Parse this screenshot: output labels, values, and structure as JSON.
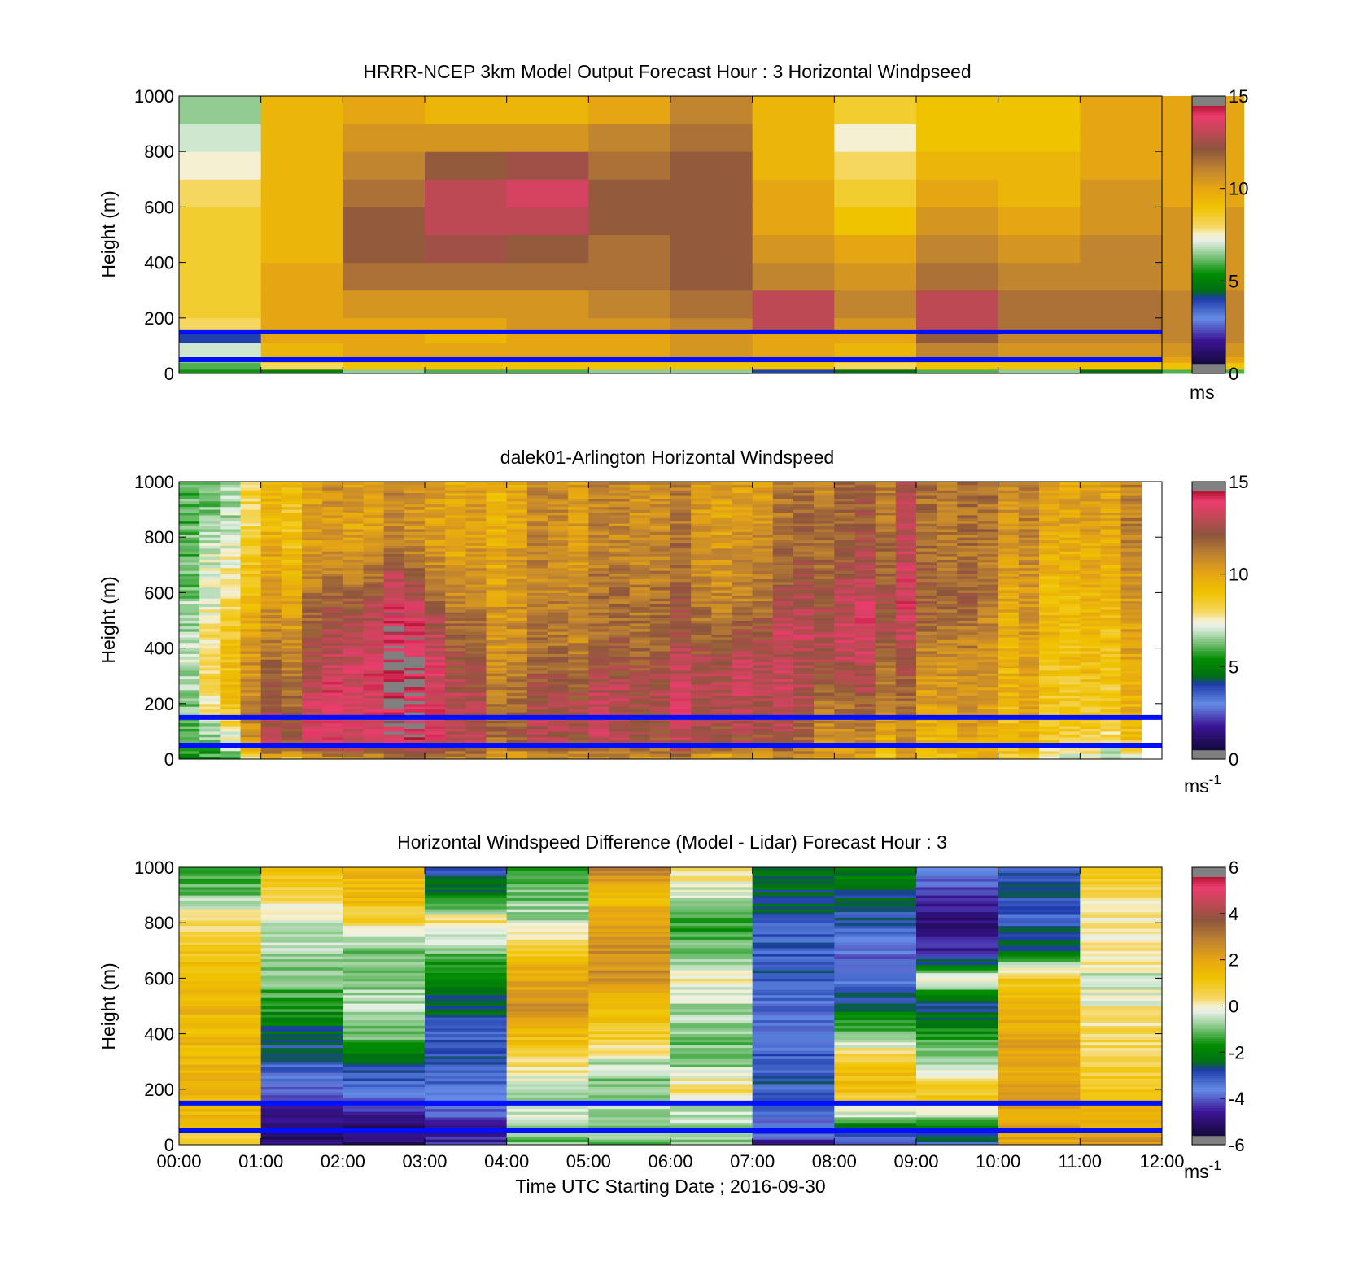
{
  "chart_data": [
    {
      "type": "heatmap",
      "id": "model",
      "title": "HRRR-NCEP 3km Model Output   Forecast Hour : 3 Horizontal Windpseed",
      "xlabel": "",
      "ylabel": "Height (m)",
      "xlim": [
        0,
        12
      ],
      "ylim": [
        0,
        1000
      ],
      "yticks": [
        "0",
        "200",
        "400",
        "600",
        "800",
        "1000"
      ],
      "xticks": [
        "",
        "",
        "",
        "",
        "",
        "",
        "",
        "",
        "",
        "",
        "",
        "",
        ""
      ],
      "columns_per_hour": 1,
      "colorbar": {
        "min": 0,
        "max": 15,
        "ticks": [
          "0",
          "5",
          "10",
          "15"
        ],
        "unit_label": "ms",
        "unit_superscript": ""
      },
      "grid": false,
      "reference_lines_height_m": [
        150,
        50
      ],
      "cell_levels_height_m": [
        0,
        15,
        40,
        60,
        110,
        160,
        200,
        300,
        400,
        500,
        600,
        700,
        800,
        900,
        1000
      ],
      "values": [
        [
          5.5,
          6.0,
          6.5,
          7.0,
          4.0,
          8.0,
          8.5,
          8.5,
          8.5,
          8.5,
          8.0,
          7.5,
          7.0,
          6.5
        ],
        [
          5.0,
          8.0,
          9.0,
          9.5,
          10.0,
          10.0,
          10.0,
          10.0,
          9.5,
          9.5,
          9.5,
          9.5,
          9.5,
          9.5
        ],
        [
          6.5,
          9.0,
          9.5,
          10.0,
          10.0,
          10.0,
          10.5,
          11.5,
          12.0,
          12.0,
          11.5,
          11.0,
          10.5,
          10.0
        ],
        [
          6.0,
          9.0,
          9.5,
          10.0,
          9.5,
          10.0,
          10.5,
          11.5,
          12.5,
          13.0,
          13.0,
          12.0,
          10.5,
          9.5
        ],
        [
          6.0,
          9.0,
          9.5,
          10.0,
          10.0,
          10.5,
          10.5,
          11.5,
          12.0,
          13.0,
          13.5,
          12.5,
          10.5,
          9.5
        ],
        [
          6.5,
          9.0,
          9.5,
          10.0,
          10.0,
          10.5,
          11.0,
          11.5,
          11.5,
          12.0,
          12.0,
          11.5,
          11.0,
          10.0
        ],
        [
          6.5,
          9.0,
          9.5,
          10.5,
          10.5,
          11.0,
          11.5,
          12.0,
          12.0,
          12.0,
          12.0,
          12.0,
          11.5,
          11.0
        ],
        [
          4.0,
          9.0,
          9.5,
          10.0,
          10.0,
          13.0,
          13.0,
          11.0,
          10.5,
          10.0,
          10.0,
          9.5,
          9.5,
          9.5
        ],
        [
          4.5,
          8.0,
          9.0,
          9.5,
          10.0,
          10.5,
          11.0,
          10.5,
          10.0,
          9.0,
          8.5,
          8.0,
          7.5,
          8.5
        ],
        [
          6.0,
          9.0,
          10.0,
          11.0,
          12.0,
          13.0,
          13.0,
          11.5,
          11.0,
          10.5,
          10.0,
          9.5,
          9.0,
          9.0
        ],
        [
          6.5,
          9.0,
          10.0,
          10.5,
          11.0,
          11.5,
          11.5,
          11.0,
          10.5,
          10.0,
          9.5,
          9.5,
          9.0,
          9.0
        ],
        [
          4.5,
          9.0,
          10.0,
          10.5,
          11.0,
          11.5,
          11.5,
          11.0,
          11.0,
          10.5,
          10.5,
          10.0,
          10.0,
          10.0
        ],
        [
          6.0,
          9.0,
          10.0,
          10.5,
          11.0,
          11.0,
          11.0,
          10.5,
          10.5,
          10.5,
          10.0,
          10.0,
          10.0,
          10.0
        ]
      ]
    },
    {
      "type": "heatmap",
      "id": "lidar",
      "title": "dalek01-Arlington  Horizontal Windspeed",
      "xlabel": "",
      "ylabel": "Height (m)",
      "xlim": [
        0,
        12
      ],
      "ylim": [
        0,
        1000
      ],
      "yticks": [
        "0",
        "200",
        "400",
        "600",
        "800",
        "1000"
      ],
      "xticks": [
        "",
        "",
        "",
        "",
        "",
        "",
        "",
        "",
        "",
        "",
        "",
        "",
        ""
      ],
      "columns_per_hour": 4,
      "data_end_hour": 11.83,
      "colorbar": {
        "min": 0,
        "max": 15,
        "ticks": [
          "0",
          "5",
          "10",
          "15"
        ],
        "unit_label": "ms",
        "unit_superscript": "-1"
      },
      "grid": false,
      "reference_lines_height_m": [
        150,
        50
      ],
      "profile_hours": [
        0,
        0.5,
        0.75,
        1,
        1.5,
        2,
        2.5,
        2.75,
        3,
        3.5,
        4,
        4.5,
        5,
        5.5,
        6,
        6.5,
        7,
        7.5,
        8,
        8.5,
        9,
        9.5,
        10,
        10.5,
        11,
        11.83
      ],
      "profile_heights_m": [
        0,
        50,
        150,
        250,
        350,
        450,
        550,
        650,
        750,
        850,
        1000
      ],
      "profiles": [
        [
          4.5,
          5.0,
          5.5,
          5.5,
          6.0,
          6.0,
          6.0,
          5.5,
          5.5,
          5.5,
          5.5
        ],
        [
          5.5,
          6.0,
          7.5,
          8.5,
          8.5,
          8.0,
          7.5,
          7.5,
          7.0,
          6.5,
          6.0
        ],
        [
          6.0,
          8.0,
          9.5,
          10.0,
          10.0,
          9.5,
          9.0,
          8.5,
          8.0,
          7.5,
          7.0
        ],
        [
          8.0,
          12.5,
          11.5,
          11.0,
          10.5,
          10.0,
          9.5,
          9.0,
          9.0,
          8.5,
          9.0
        ],
        [
          9.0,
          13.0,
          13.0,
          12.5,
          12.0,
          11.5,
          11.0,
          10.5,
          10.0,
          9.5,
          10.0
        ],
        [
          10.0,
          13.5,
          13.5,
          13.5,
          13.0,
          12.5,
          12.0,
          11.0,
          10.5,
          10.0,
          10.5
        ],
        [
          11.0,
          13.5,
          14.0,
          14.0,
          14.5,
          14.0,
          13.5,
          12.5,
          11.0,
          10.5,
          10.5
        ],
        [
          11.0,
          14.0,
          14.5,
          15.0,
          15.0,
          14.5,
          14.0,
          13.0,
          11.5,
          11.0,
          11.0
        ],
        [
          11.0,
          14.0,
          14.5,
          14.5,
          14.5,
          14.0,
          13.0,
          12.0,
          11.0,
          10.5,
          10.5
        ],
        [
          10.5,
          13.0,
          13.0,
          12.5,
          12.0,
          11.5,
          11.0,
          10.5,
          10.0,
          10.0,
          10.0
        ],
        [
          10.0,
          12.0,
          12.0,
          11.5,
          11.0,
          11.0,
          11.0,
          10.5,
          10.5,
          10.0,
          10.0
        ],
        [
          10.0,
          12.5,
          12.5,
          12.0,
          11.5,
          11.0,
          11.0,
          10.5,
          10.5,
          10.5,
          10.5
        ],
        [
          10.0,
          12.5,
          13.0,
          12.5,
          11.5,
          11.0,
          11.0,
          11.0,
          10.5,
          10.5,
          10.5
        ],
        [
          10.0,
          12.0,
          12.5,
          12.5,
          12.0,
          11.5,
          11.0,
          11.0,
          10.5,
          10.5,
          10.5
        ],
        [
          10.0,
          12.0,
          12.5,
          12.5,
          12.0,
          11.5,
          11.5,
          11.0,
          11.0,
          10.5,
          10.5
        ],
        [
          10.0,
          12.5,
          13.0,
          13.0,
          13.0,
          12.0,
          11.5,
          11.0,
          11.0,
          10.5,
          10.5
        ],
        [
          10.0,
          12.5,
          13.0,
          13.5,
          13.5,
          12.5,
          11.5,
          11.0,
          11.0,
          10.5,
          10.5
        ],
        [
          10.0,
          11.5,
          12.0,
          12.5,
          12.0,
          12.5,
          12.0,
          11.5,
          11.0,
          11.0,
          10.5
        ],
        [
          9.5,
          10.0,
          10.5,
          11.5,
          12.5,
          13.0,
          12.5,
          12.0,
          11.5,
          11.5,
          11.0
        ],
        [
          9.5,
          10.5,
          11.0,
          12.0,
          12.5,
          13.0,
          13.0,
          12.5,
          12.0,
          11.5,
          11.5
        ],
        [
          9.5,
          10.0,
          10.5,
          11.0,
          11.5,
          12.5,
          13.0,
          13.0,
          12.5,
          12.5,
          12.5
        ],
        [
          9.5,
          10.0,
          10.5,
          11.0,
          11.0,
          11.5,
          12.0,
          12.0,
          11.5,
          11.5,
          11.5
        ],
        [
          9.0,
          9.5,
          9.5,
          10.0,
          10.0,
          10.0,
          10.5,
          10.5,
          11.0,
          11.0,
          11.0
        ],
        [
          8.5,
          9.0,
          9.5,
          9.5,
          9.5,
          10.0,
          10.0,
          10.0,
          10.5,
          10.5,
          10.5
        ],
        [
          7.5,
          8.5,
          9.0,
          9.0,
          9.5,
          9.5,
          9.5,
          10.0,
          10.0,
          10.5,
          10.5
        ],
        [
          6.0,
          8.0,
          9.0,
          9.0,
          9.5,
          9.5,
          10.0,
          10.0,
          10.5,
          10.5,
          10.5
        ]
      ]
    },
    {
      "type": "heatmap",
      "id": "difference",
      "title": "Horizontal Windspeed Difference (Model - Lidar) Forecast Hour : 3",
      "xlabel": "Time UTC  Starting Date ; 2016-09-30",
      "ylabel": "Height (m)",
      "xlim": [
        0,
        12
      ],
      "ylim": [
        0,
        1000
      ],
      "yticks": [
        "0",
        "200",
        "400",
        "600",
        "800",
        "1000"
      ],
      "xticks": [
        "00:00",
        "01:00",
        "02:00",
        "03:00",
        "04:00",
        "05:00",
        "06:00",
        "07:00",
        "08:00",
        "09:00",
        "10:00",
        "11:00",
        "12:00"
      ],
      "columns_per_hour": 1,
      "colorbar": {
        "min": -6,
        "max": 6,
        "ticks": [
          "-6",
          "-4",
          "-2",
          "0",
          "2",
          "4",
          "6"
        ],
        "unit_label": "ms",
        "unit_superscript": "-1"
      },
      "grid": false,
      "reference_lines_height_m": [
        150,
        50
      ],
      "profile_heights_m": [
        0,
        50,
        100,
        150,
        200,
        300,
        400,
        500,
        600,
        700,
        800,
        900,
        1000
      ],
      "profiles": [
        [
          0.5,
          1.0,
          1.5,
          1.5,
          1.5,
          1.5,
          1.5,
          1.5,
          1.5,
          1.0,
          0.5,
          -1.0,
          -1.5
        ],
        [
          -5.0,
          -5.0,
          -5.0,
          -4.5,
          -4.0,
          -3.0,
          -2.5,
          -1.5,
          -1.0,
          -0.5,
          -0.5,
          0.5,
          1.5
        ],
        [
          -5.0,
          -5.0,
          -4.5,
          -4.0,
          -3.5,
          -2.5,
          -1.0,
          -0.5,
          -1.0,
          -1.0,
          0.5,
          1.5,
          1.5
        ],
        [
          -4.5,
          -4.5,
          -4.0,
          -4.0,
          -3.5,
          -3.0,
          -3.0,
          -2.5,
          -2.0,
          -1.0,
          0.5,
          -2.0,
          -3.0
        ],
        [
          -1.0,
          -1.0,
          -0.5,
          -0.5,
          -0.5,
          0.5,
          1.5,
          2.5,
          2.0,
          1.0,
          -0.5,
          -1.0,
          -1.5
        ],
        [
          -1.0,
          -1.0,
          -1.0,
          -0.5,
          -1.0,
          -0.5,
          1.0,
          1.5,
          2.5,
          2.5,
          2.0,
          1.5,
          3.0
        ],
        [
          -1.0,
          -1.0,
          -0.5,
          -0.5,
          0.5,
          -1.0,
          -1.0,
          -0.5,
          0.0,
          -1.0,
          -1.5,
          -0.5,
          0.5
        ],
        [
          -4.5,
          -4.0,
          -3.5,
          -3.0,
          -3.0,
          -3.0,
          -3.5,
          -3.5,
          -3.0,
          -3.0,
          -3.0,
          -2.5,
          -2.0
        ],
        [
          -4.0,
          -3.0,
          -0.5,
          0.5,
          1.5,
          1.0,
          -1.0,
          -2.5,
          -3.5,
          -4.0,
          -3.0,
          -2.5,
          -2.0
        ],
        [
          -3.0,
          -2.5,
          -1.0,
          1.0,
          1.0,
          -0.5,
          -1.5,
          -3.0,
          0.0,
          -4.5,
          -5.0,
          -4.5,
          -3.5
        ],
        [
          2.0,
          2.0,
          2.0,
          2.0,
          2.0,
          2.0,
          2.0,
          1.5,
          1.0,
          -2.5,
          -3.0,
          -3.0,
          -3.0
        ],
        [
          2.5,
          2.0,
          1.5,
          1.5,
          1.0,
          0.5,
          0.5,
          0.0,
          -0.5,
          0.5,
          0.0,
          0.5,
          1.0
        ]
      ]
    }
  ]
}
